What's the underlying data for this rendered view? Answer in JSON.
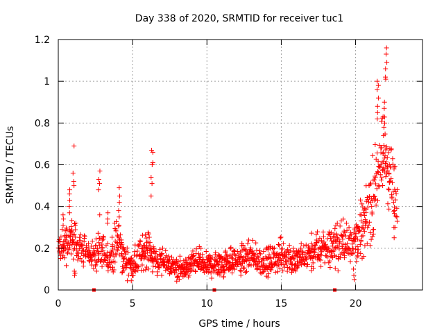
{
  "chart_data": {
    "type": "scatter",
    "title": "Day 338 of 2020, SRMTID for receiver tuc1",
    "xlabel": "GPS time / hours",
    "ylabel": "SRMTID / TECUs",
    "xlim": [
      0,
      24.5
    ],
    "ylim": [
      0,
      1.2
    ],
    "xticks": [
      "0",
      "5",
      "10",
      "15",
      "20"
    ],
    "xtick_values": [
      0,
      5,
      10,
      15,
      20
    ],
    "yticks": [
      "0",
      "0.2",
      "0.4",
      "0.6",
      "0.8",
      "1",
      "1.2"
    ],
    "ytick_values": [
      0,
      0.2,
      0.4,
      0.6,
      0.8,
      1.0,
      1.2
    ],
    "grid": true,
    "marker": "+",
    "color": "#ff0000",
    "gap_markers_x": [
      2.4,
      10.5,
      18.6
    ],
    "envelope": {
      "x": [
        0,
        0.5,
        1.0,
        1.5,
        2.0,
        2.5,
        3.0,
        3.5,
        4.0,
        4.5,
        5.0,
        5.5,
        6.0,
        6.5,
        7.0,
        7.5,
        8.0,
        8.5,
        9.0,
        9.5,
        10.0,
        10.5,
        11.0,
        11.5,
        12.0,
        12.5,
        13.0,
        13.5,
        14.0,
        14.5,
        15.0,
        15.5,
        16.0,
        16.5,
        17.0,
        17.5,
        18.0,
        18.5,
        19.0,
        19.5,
        20.0,
        20.5,
        21.0,
        21.5,
        22.0,
        22.5,
        22.8
      ],
      "y": [
        0.21,
        0.22,
        0.24,
        0.19,
        0.18,
        0.15,
        0.18,
        0.15,
        0.23,
        0.13,
        0.12,
        0.16,
        0.21,
        0.14,
        0.13,
        0.12,
        0.1,
        0.1,
        0.12,
        0.14,
        0.12,
        0.12,
        0.13,
        0.14,
        0.14,
        0.15,
        0.15,
        0.14,
        0.13,
        0.14,
        0.17,
        0.15,
        0.14,
        0.15,
        0.17,
        0.19,
        0.2,
        0.22,
        0.22,
        0.24,
        0.25,
        0.3,
        0.4,
        0.55,
        0.65,
        0.5,
        0.33
      ],
      "spread": [
        0.05,
        0.06,
        0.06,
        0.05,
        0.05,
        0.05,
        0.05,
        0.05,
        0.07,
        0.04,
        0.04,
        0.05,
        0.06,
        0.04,
        0.04,
        0.035,
        0.03,
        0.03,
        0.035,
        0.04,
        0.035,
        0.035,
        0.04,
        0.04,
        0.04,
        0.045,
        0.045,
        0.04,
        0.04,
        0.04,
        0.05,
        0.045,
        0.04,
        0.045,
        0.05,
        0.055,
        0.06,
        0.06,
        0.06,
        0.07,
        0.07,
        0.08,
        0.1,
        0.12,
        0.14,
        0.12,
        0.08
      ]
    },
    "spikes": [
      {
        "x": 0.3,
        "ys": [
          0.34,
          0.31,
          0.29,
          0.36
        ]
      },
      {
        "x": 0.8,
        "ys": [
          0.4,
          0.46,
          0.48,
          0.43,
          0.37
        ]
      },
      {
        "x": 1.05,
        "ys": [
          0.69,
          0.56,
          0.52,
          0.5
        ]
      },
      {
        "x": 1.1,
        "ys": [
          0.08,
          0.09,
          0.07
        ]
      },
      {
        "x": 2.75,
        "ys": [
          0.57,
          0.53,
          0.51,
          0.48,
          0.36
        ]
      },
      {
        "x": 3.3,
        "ys": [
          0.37,
          0.34,
          0.32
        ]
      },
      {
        "x": 4.1,
        "ys": [
          0.49,
          0.45,
          0.42,
          0.38,
          0.35,
          0.31
        ]
      },
      {
        "x": 6.3,
        "ys": [
          0.67,
          0.66,
          0.61,
          0.6,
          0.54,
          0.51,
          0.45
        ]
      },
      {
        "x": 21.5,
        "ys": [
          1.0,
          0.98,
          0.96,
          0.92,
          0.88,
          0.85,
          0.82
        ]
      },
      {
        "x": 21.9,
        "ys": [
          0.9,
          0.87,
          0.83,
          0.8,
          0.78,
          0.74
        ]
      },
      {
        "x": 22.05,
        "ys": [
          1.16,
          1.13,
          1.09,
          1.06,
          1.02,
          1.01
        ]
      },
      {
        "x": 22.3,
        "ys": [
          0.6,
          0.56,
          0.52,
          0.48
        ]
      },
      {
        "x": 22.6,
        "ys": [
          0.42,
          0.38,
          0.3,
          0.25
        ]
      },
      {
        "x": 19.9,
        "ys": [
          0.07,
          0.05,
          0.1
        ]
      }
    ]
  }
}
